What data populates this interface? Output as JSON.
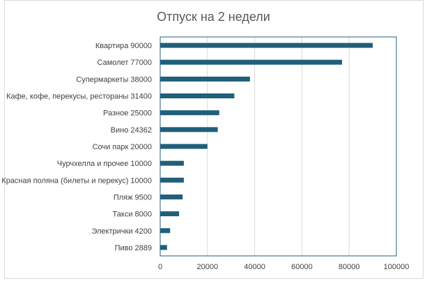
{
  "chart_data": {
    "type": "bar",
    "orientation": "horizontal",
    "title": "Отпуск на 2 недели",
    "categories": [
      "Квартира 90000",
      "Самолет 77000",
      "Супермаркеты 38000",
      "Кафе, кофе, перекусы, рестораны 31400",
      "Разное 25000",
      "Вино 24362",
      "Сочи парк 20000",
      "Чурчхелла и прочее 10000",
      "Красная поляна (билеты и перекус) 10000",
      "Пляж 9500",
      "Такси 8000",
      "Электрички 4200",
      "Пиво 2889"
    ],
    "values": [
      90000,
      77000,
      38000,
      31400,
      25000,
      24362,
      20000,
      10000,
      10000,
      9500,
      8000,
      4200,
      2889
    ],
    "xlim": [
      0,
      100000
    ],
    "xticks": [
      0,
      20000,
      40000,
      60000,
      80000,
      100000
    ],
    "grid": true,
    "bar_color": "#1f5f7a"
  }
}
